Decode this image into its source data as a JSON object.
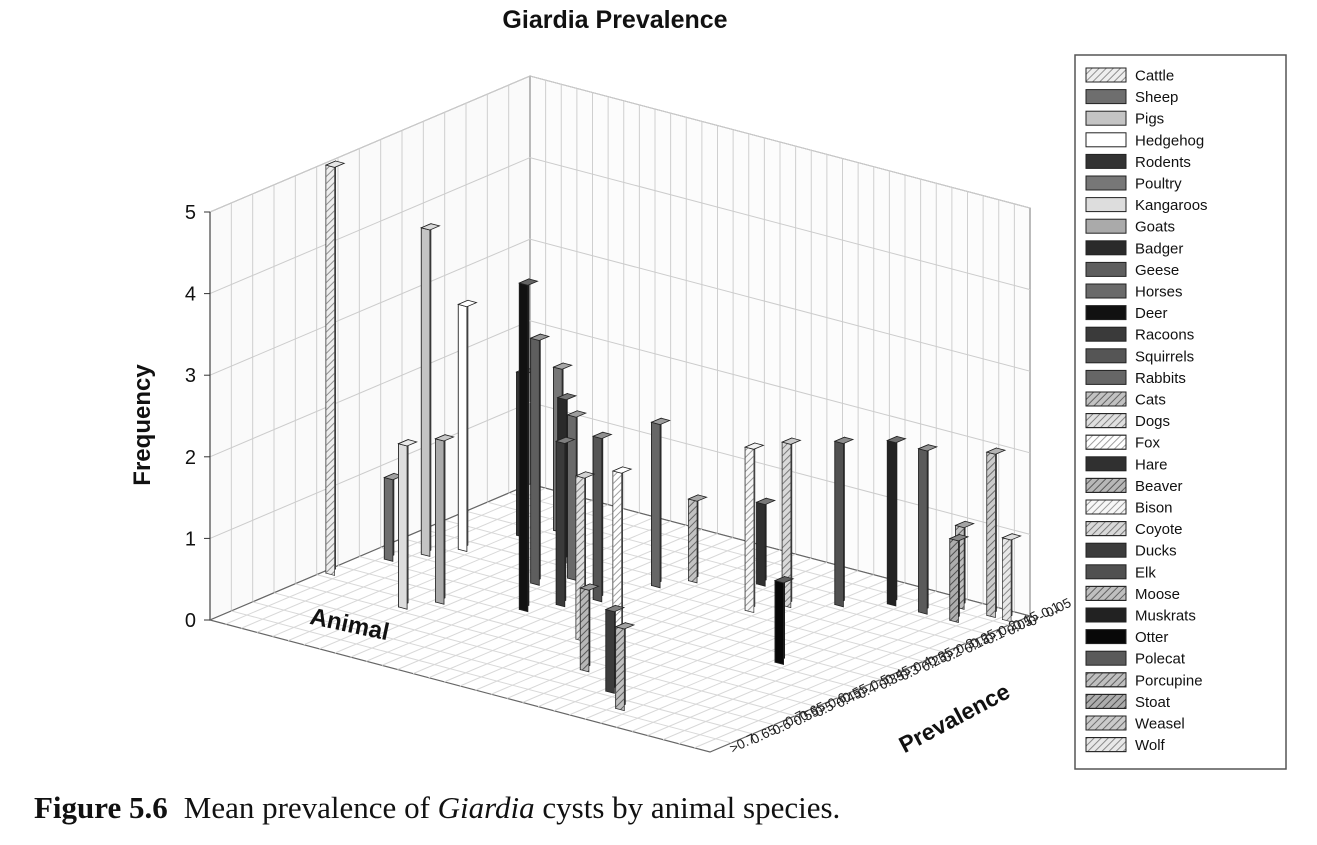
{
  "chart_data": {
    "type": "bar",
    "title": "Giardia Prevalence",
    "xlabel": "Animal",
    "ylabel": "Frequency",
    "zlabel": "Prevalence",
    "ylim": [
      0,
      5
    ],
    "y_ticks": [
      "0",
      "1",
      "2",
      "3",
      "4",
      "5"
    ],
    "grid": true,
    "legend_position": "right",
    "prevalence_bins": [
      "0 - 0.05",
      "0.05 - 0.1",
      "0.1 - 0.15",
      "0.15 - 0.2",
      "0.2 - 0.25",
      "0.25 - 0.3",
      "0.3 - 0.35",
      "0.35 - 0.4",
      "0.4 - 0.45",
      "0.45 - 0.5",
      "0.5 - 0.55",
      "0.55 - 0.6",
      "0.6 - 0.65",
      "0.65 - 0.7",
      ">0.7"
    ],
    "series": [
      {
        "name": "Cattle",
        "color": "#d9d9d9",
        "pattern": "hatch",
        "values": [
          {
            "bin": "0.45 - 0.5",
            "y": 5
          }
        ]
      },
      {
        "name": "Sheep",
        "color": "#6e6e6e",
        "pattern": "solid",
        "values": [
          {
            "bin": "0.35 - 0.4",
            "y": 1
          }
        ]
      },
      {
        "name": "Pigs",
        "color": "#c4c4c4",
        "pattern": "solid",
        "values": [
          {
            "bin": "0.3 - 0.35",
            "y": 4
          }
        ]
      },
      {
        "name": "Hedgehog",
        "color": "#ffffff",
        "pattern": "solid",
        "values": [
          {
            "bin": "0.25 - 0.3",
            "y": 3
          }
        ]
      },
      {
        "name": "Rodents",
        "color": "#333333",
        "pattern": "solid",
        "values": [
          {
            "bin": "0.15 - 0.2",
            "y": 2
          }
        ]
      },
      {
        "name": "Poultry",
        "color": "#777777",
        "pattern": "solid",
        "values": [
          {
            "bin": "0.1 - 0.15",
            "y": 2
          }
        ]
      },
      {
        "name": "Kangaroos",
        "color": "#dddddd",
        "pattern": "solid",
        "values": [
          {
            "bin": "0.5 - 0.55",
            "y": 2
          }
        ]
      },
      {
        "name": "Goats",
        "color": "#aaaaaa",
        "pattern": "solid",
        "values": [
          {
            "bin": "0.45 - 0.5",
            "y": 2
          }
        ]
      },
      {
        "name": "Badger",
        "color": "#2a2a2a",
        "pattern": "solid",
        "values": [
          {
            "bin": "0.2 - 0.25",
            "y": 2
          }
        ]
      },
      {
        "name": "Geese",
        "color": "#5e5e5e",
        "pattern": "solid",
        "values": [
          {
            "bin": "0.3 - 0.35",
            "y": 3
          }
        ]
      },
      {
        "name": "Horses",
        "color": "#6a6a6a",
        "pattern": "solid",
        "values": [
          {
            "bin": "0.25 - 0.3",
            "y": 2
          }
        ]
      },
      {
        "name": "Deer",
        "color": "#111111",
        "pattern": "solid",
        "values": [
          {
            "bin": "0.4 - 0.45",
            "y": 4
          }
        ]
      },
      {
        "name": "Racoons",
        "color": "#3a3a3a",
        "pattern": "solid",
        "values": [
          {
            "bin": "0.35 - 0.4",
            "y": 2
          }
        ]
      },
      {
        "name": "Squirrels",
        "color": "#555555",
        "pattern": "solid",
        "values": [
          {
            "bin": "0.3 - 0.35",
            "y": 2
          }
        ]
      },
      {
        "name": "Rabbits",
        "color": "#666666",
        "pattern": "solid",
        "values": [
          {
            "bin": "0.2 - 0.25",
            "y": 2
          }
        ]
      },
      {
        "name": "Cats",
        "color": "#777777",
        "pattern": "hatch",
        "values": [
          {
            "bin": "0.15 - 0.2",
            "y": 1
          }
        ]
      },
      {
        "name": "Dogs",
        "color": "#bbbbbb",
        "pattern": "hatch",
        "values": [
          {
            "bin": "0.45 - 0.5",
            "y": 2
          }
        ]
      },
      {
        "name": "Fox",
        "color": "#ffffff",
        "pattern": "hatch",
        "values": [
          {
            "bin": "0.4 - 0.45",
            "y": 2
          }
        ]
      },
      {
        "name": "Hare",
        "color": "#303030",
        "pattern": "solid",
        "values": [
          {
            "bin": "0.1 - 0.15",
            "y": 1
          }
        ]
      },
      {
        "name": "Beaver",
        "color": "#606060",
        "pattern": "hatch",
        "values": [
          {
            "bin": "0.55 - 0.6",
            "y": 1
          }
        ]
      },
      {
        "name": "Bison",
        "color": "#eeeeee",
        "pattern": "hatch",
        "values": [
          {
            "bin": "0.2 - 0.25",
            "y": 2
          }
        ]
      },
      {
        "name": "Coyote",
        "color": "#aaaaaa",
        "pattern": "hatch",
        "values": [
          {
            "bin": "0.15 - 0.2",
            "y": 2
          }
        ]
      },
      {
        "name": "Ducks",
        "color": "#3c3c3c",
        "pattern": "solid",
        "values": [
          {
            "bin": "0.6 - 0.65",
            "y": 1
          }
        ]
      },
      {
        "name": "Elk",
        "color": "#505050",
        "pattern": "solid",
        "values": [
          {
            "bin": "0.1 - 0.15",
            "y": 2
          }
        ]
      },
      {
        "name": "Moose",
        "color": "#707070",
        "pattern": "hatch",
        "values": [
          {
            "bin": "0.65 - 0.7",
            "y": 1
          }
        ]
      },
      {
        "name": "Muskrats",
        "color": "#222222",
        "pattern": "solid",
        "values": [
          {
            "bin": "0.05 - 0.1",
            "y": 2
          }
        ]
      },
      {
        "name": "Otter",
        "color": "#080808",
        "pattern": "solid",
        "values": [
          {
            "bin": "0.35 - 0.4",
            "y": 1
          }
        ]
      },
      {
        "name": "Polecat",
        "color": "#5a5a5a",
        "pattern": "solid",
        "values": [
          {
            "bin": "0.05 - 0.1",
            "y": 2
          }
        ]
      },
      {
        "name": "Porcupine",
        "color": "#727272",
        "pattern": "hatch",
        "values": [
          {
            "bin": "0.0 - 0.05",
            "y": 1
          }
        ]
      },
      {
        "name": "Stoat",
        "color": "#4a4a4a",
        "pattern": "hatch",
        "values": [
          {
            "bin": "0.05 - 0.1",
            "y": 1
          }
        ]
      },
      {
        "name": "Weasel",
        "color": "#8c8c8c",
        "pattern": "hatch",
        "values": [
          {
            "bin": "0.0 - 0.05",
            "y": 2
          }
        ]
      },
      {
        "name": "Wolf",
        "color": "#cccccc",
        "pattern": "hatch",
        "values": [
          {
            "bin": "0.0 - 0.05",
            "y": 1
          }
        ]
      }
    ]
  },
  "caption": {
    "label": "Figure 5.6",
    "text_before": "Mean prevalence of ",
    "italic": "Giardia",
    "text_after": " cysts by animal species."
  }
}
